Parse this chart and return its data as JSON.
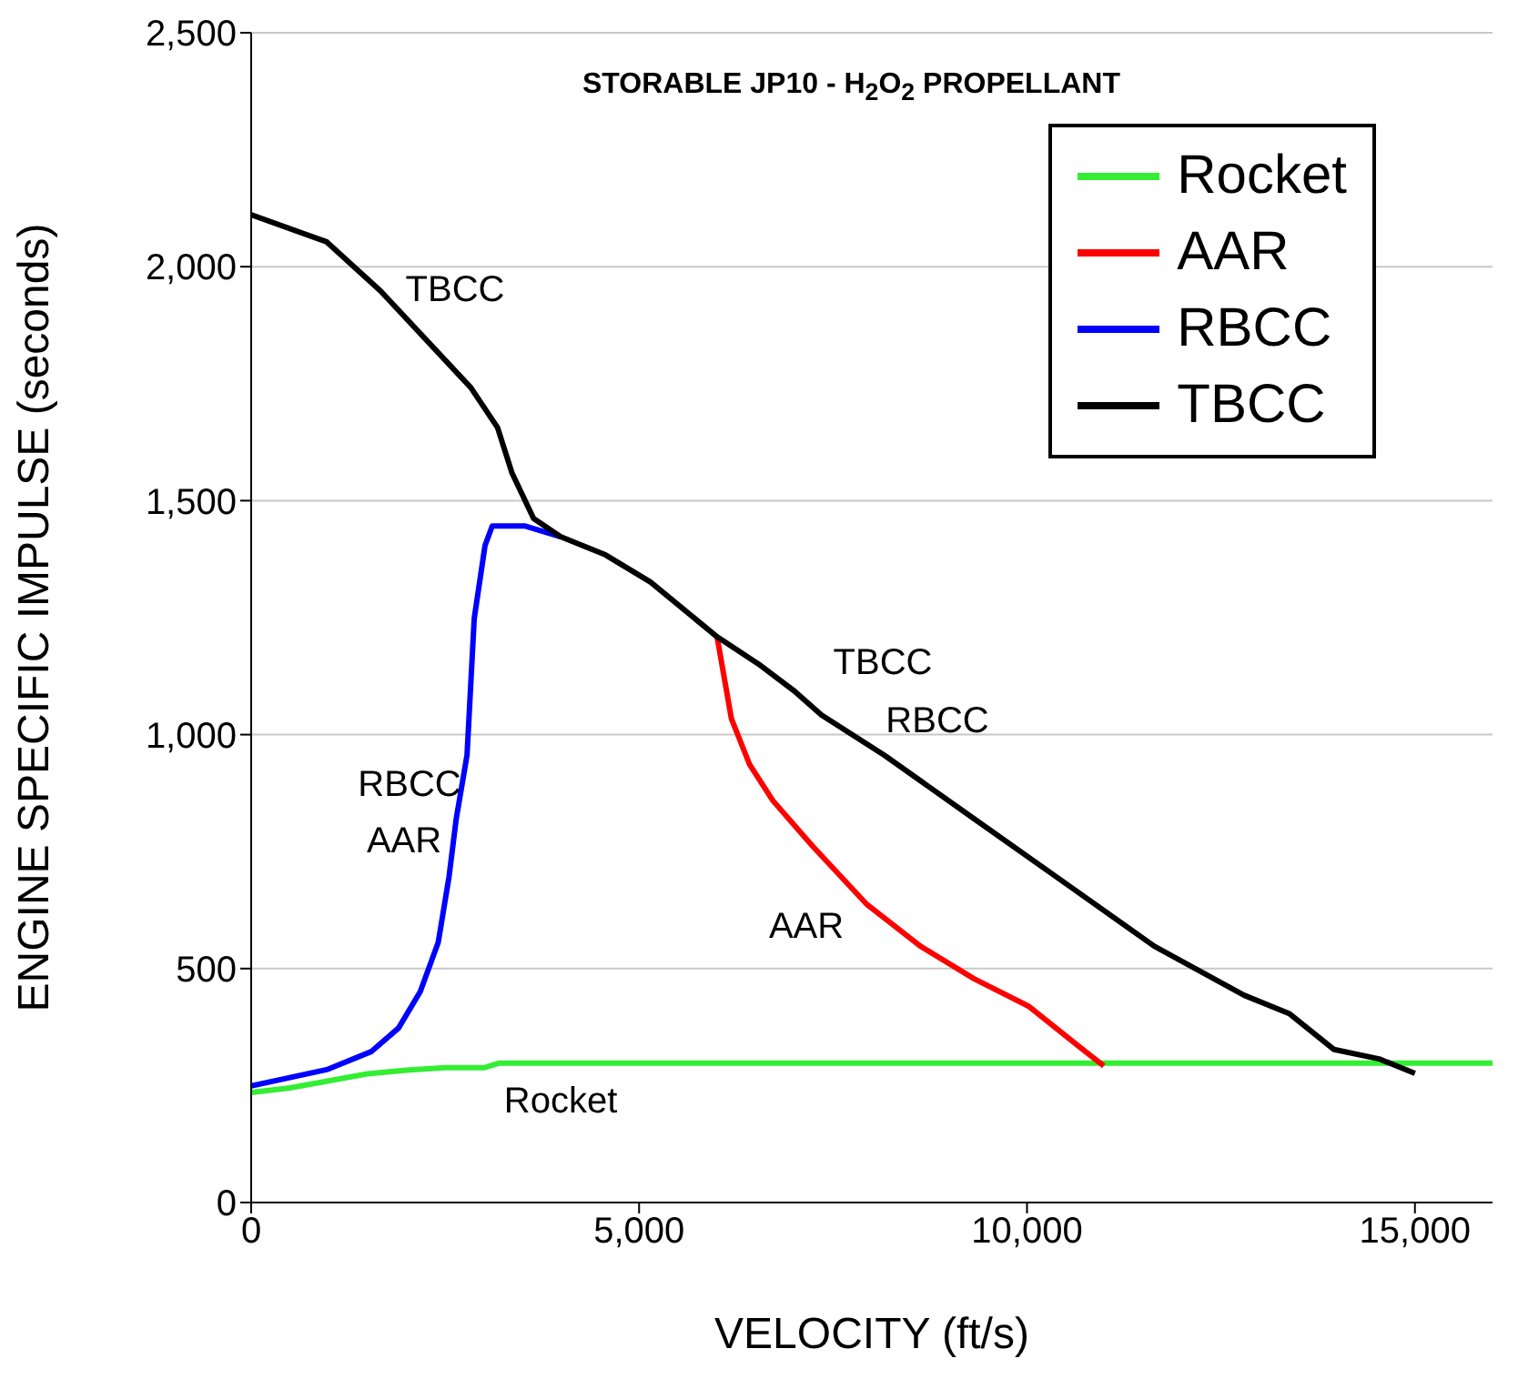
{
  "chart_data": {
    "type": "line",
    "title": "STORABLE JP10 - H$_{2}$O$_{2}$ PROPELLANT",
    "xlabel": "VELOCITY (ft/s)",
    "ylabel": "ENGINE SPECIFIC IMPULSE (seconds)",
    "xlim": [
      0,
      16000
    ],
    "xticks": [
      {
        "value": 0,
        "label": "0"
      },
      {
        "value": 5000,
        "label": "5,000"
      },
      {
        "value": 10000,
        "label": "10,000"
      },
      {
        "value": 15000,
        "label": "15,000"
      }
    ],
    "ylim": [
      0,
      2500
    ],
    "yticks": [
      {
        "value": 0,
        "label": "0"
      },
      {
        "value": 500,
        "label": "500"
      },
      {
        "value": 1000,
        "label": "1,000"
      },
      {
        "value": 1500,
        "label": "1,500"
      },
      {
        "value": 2000,
        "label": "2,000"
      },
      {
        "value": 2500,
        "label": "2,500"
      }
    ],
    "grid": "y",
    "legend": "top right",
    "marker": "none",
    "line_style": "solid",
    "series": [
      {
        "name": "Rocket",
        "color": "#33ee33",
        "x": [
          0,
          500,
          1000,
          1500,
          2000,
          2500,
          3000,
          3200,
          5000,
          10000,
          16000
        ],
        "values": [
          235,
          245,
          260,
          275,
          283,
          288,
          288,
          298,
          298,
          298,
          298
        ]
      },
      {
        "name": "AAR",
        "color": "#ff0000",
        "x": [
          6005,
          6190,
          6422,
          6724,
          7234,
          7930,
          8625,
          9320,
          10016,
          10665,
          10990
        ],
        "values": [
          1209,
          1034,
          937,
          859,
          762,
          638,
          548,
          478,
          420,
          334,
          292
        ]
      },
      {
        "name": "RBCC",
        "color": "#0000ff",
        "x": [
          0,
          974,
          1553,
          1900,
          2180,
          2411,
          2550,
          2643,
          2782,
          2875,
          3014,
          3107,
          3524,
          3988
        ],
        "values": [
          249,
          284,
          323,
          373,
          451,
          556,
          696,
          820,
          956,
          1248,
          1404,
          1446,
          1446,
          1423
        ]
      },
      {
        "name": "TBCC",
        "color": "#000000",
        "x": [
          0,
          974,
          1669,
          2829,
          3176,
          3362,
          3640,
          3988,
          4568,
          5147,
          6005,
          6538,
          7002,
          7350,
          8161,
          9320,
          10480,
          11639,
          12798,
          13378,
          13958,
          14537,
          15000
        ],
        "values": [
          2111,
          2053,
          1948,
          1742,
          1656,
          1559,
          1462,
          1423,
          1384,
          1326,
          1209,
          1151,
          1093,
          1042,
          956,
          820,
          684,
          548,
          443,
          404,
          327,
          307,
          276
        ]
      }
    ],
    "annotations": [
      "TBCC",
      "TBCC",
      "RBCC",
      "RBCC",
      "AAR",
      "AAR",
      "Rocket"
    ]
  }
}
